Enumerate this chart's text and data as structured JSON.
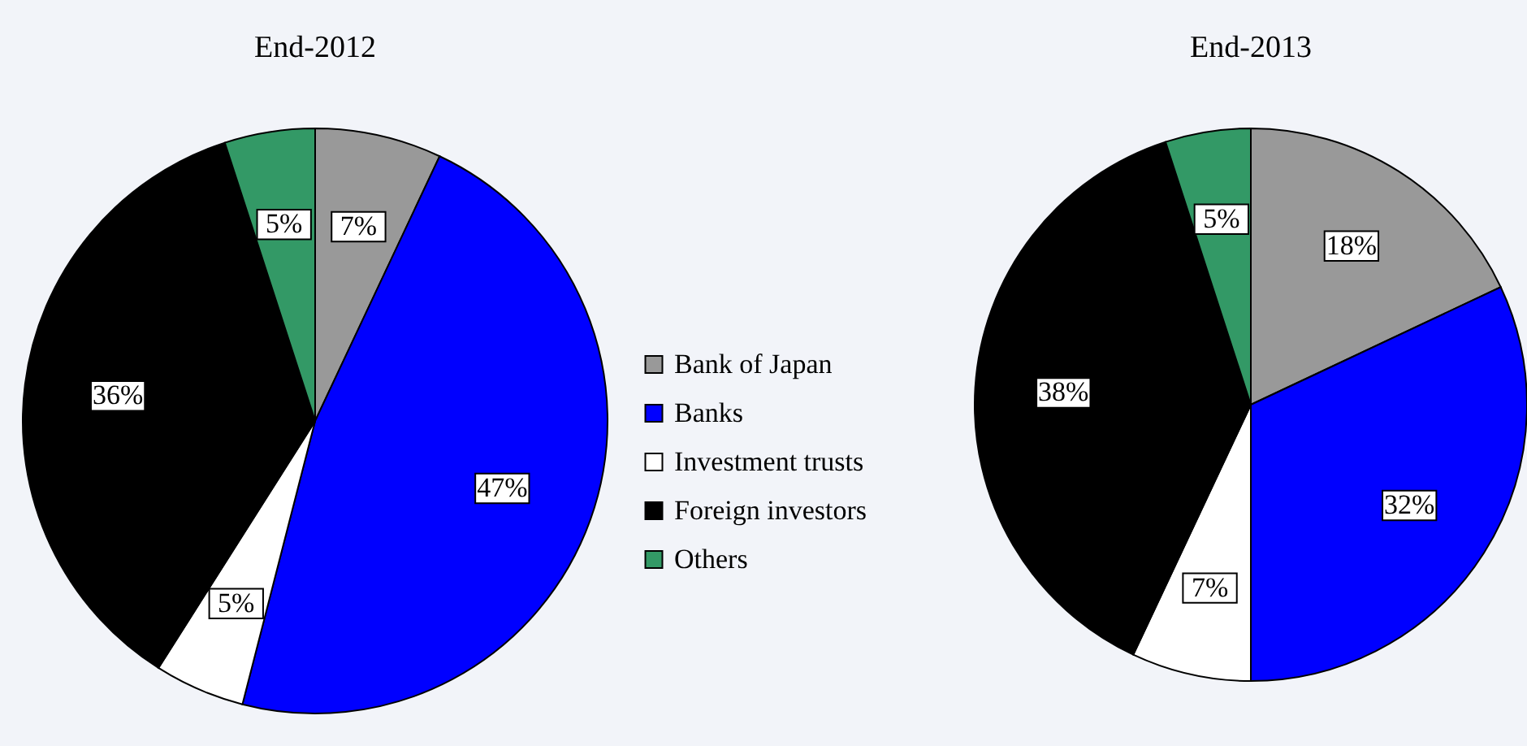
{
  "chart_data": [
    {
      "type": "pie",
      "title": "End-2012",
      "categories": [
        "Bank of Japan",
        "Banks",
        "Investment trusts",
        "Foreign investors",
        "Others"
      ],
      "values": [
        7,
        47,
        5,
        36,
        5
      ],
      "colors": [
        "#999999",
        "#0000ff",
        "#ffffff",
        "#000000",
        "#339966"
      ],
      "value_labels": [
        "7%",
        "47%",
        "5%",
        "36%",
        "5%"
      ],
      "legend": "right"
    },
    {
      "type": "pie",
      "title": "End-2013",
      "categories": [
        null,
        null,
        null,
        null,
        null
      ],
      "values": [
        18,
        32,
        7,
        38,
        5
      ],
      "colors": [
        "#999999",
        "#0000ff",
        "#ffffff",
        "#000000",
        "#339966"
      ],
      "value_labels": [
        "18%",
        "32%",
        "7%",
        "38%",
        "5%"
      ]
    }
  ]
}
